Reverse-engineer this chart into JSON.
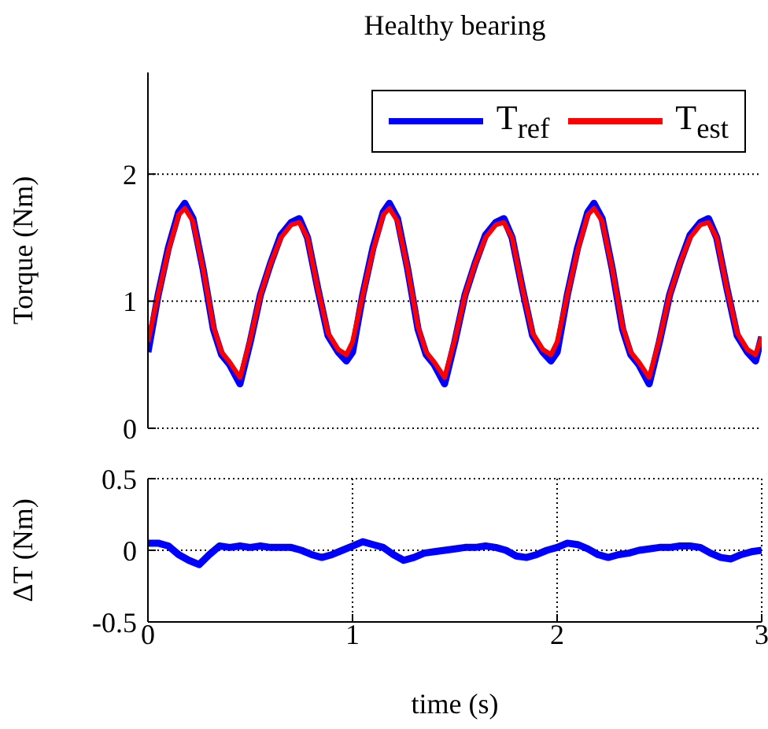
{
  "chart_data": [
    {
      "type": "line",
      "title": "Healthy bearing",
      "ylabel": "Torque (Nm)",
      "xlim": [
        0,
        3
      ],
      "xticks": [
        0,
        1,
        2,
        3
      ],
      "ylim": [
        0,
        2.8
      ],
      "yticks": [
        0,
        1,
        2
      ],
      "grid": "y",
      "legend": "top right",
      "tick_labels": "y",
      "x": [
        0,
        0.05,
        0.1,
        0.15,
        0.18,
        0.22,
        0.27,
        0.32,
        0.36,
        0.4,
        0.45,
        0.5,
        0.55,
        0.6,
        0.65,
        0.7,
        0.74,
        0.78,
        0.83,
        0.88,
        0.93,
        0.97,
        1,
        1.05,
        1.1,
        1.15,
        1.18,
        1.22,
        1.27,
        1.32,
        1.36,
        1.4,
        1.45,
        1.5,
        1.55,
        1.6,
        1.65,
        1.7,
        1.74,
        1.78,
        1.83,
        1.88,
        1.93,
        1.97,
        2,
        2.05,
        2.1,
        2.15,
        2.18,
        2.22,
        2.27,
        2.32,
        2.36,
        2.4,
        2.45,
        2.5,
        2.55,
        2.6,
        2.65,
        2.7,
        2.74,
        2.78,
        2.83,
        2.88,
        2.93,
        2.97,
        3
      ],
      "series": [
        {
          "name": "T$_{ref}$",
          "color": "#0000ff",
          "values": [
            0.6,
            1.05,
            1.42,
            1.7,
            1.77,
            1.65,
            1.25,
            0.78,
            0.58,
            0.5,
            0.35,
            0.68,
            1.05,
            1.3,
            1.52,
            1.62,
            1.65,
            1.5,
            1.1,
            0.73,
            0.6,
            0.53,
            0.6,
            1.05,
            1.42,
            1.7,
            1.77,
            1.65,
            1.25,
            0.78,
            0.58,
            0.5,
            0.35,
            0.68,
            1.05,
            1.3,
            1.52,
            1.62,
            1.65,
            1.5,
            1.1,
            0.73,
            0.6,
            0.53,
            0.6,
            1.05,
            1.42,
            1.7,
            1.77,
            1.65,
            1.25,
            0.78,
            0.58,
            0.5,
            0.35,
            0.68,
            1.05,
            1.3,
            1.52,
            1.62,
            1.65,
            1.5,
            1.1,
            0.73,
            0.6,
            0.53,
            0.72
          ]
        },
        {
          "name": "T$_{est}$",
          "color": "#ff0000",
          "values": [
            0.68,
            1.05,
            1.4,
            1.68,
            1.73,
            1.63,
            1.25,
            0.8,
            0.6,
            0.52,
            0.4,
            0.7,
            1.05,
            1.3,
            1.5,
            1.6,
            1.62,
            1.5,
            1.1,
            0.75,
            0.62,
            0.58,
            0.68,
            1.05,
            1.4,
            1.68,
            1.73,
            1.63,
            1.25,
            0.8,
            0.6,
            0.52,
            0.4,
            0.7,
            1.05,
            1.3,
            1.5,
            1.6,
            1.62,
            1.5,
            1.1,
            0.75,
            0.62,
            0.58,
            0.68,
            1.05,
            1.4,
            1.68,
            1.73,
            1.63,
            1.25,
            0.8,
            0.6,
            0.52,
            0.4,
            0.7,
            1.05,
            1.3,
            1.5,
            1.6,
            1.62,
            1.5,
            1.1,
            0.75,
            0.62,
            0.58,
            0.72
          ]
        }
      ]
    },
    {
      "type": "line",
      "xlabel": "time (s)",
      "ylabel": "ΔT (Nm)",
      "xlim": [
        0,
        3
      ],
      "xticks": [
        0,
        1,
        2,
        3
      ],
      "ylim": [
        -0.5,
        0.5
      ],
      "yticks": [
        -0.5,
        0,
        0.5
      ],
      "grid": true,
      "x": [
        0,
        0.05,
        0.1,
        0.15,
        0.2,
        0.25,
        0.3,
        0.35,
        0.4,
        0.45,
        0.5,
        0.55,
        0.6,
        0.65,
        0.7,
        0.75,
        0.8,
        0.85,
        0.9,
        0.95,
        1,
        1.05,
        1.1,
        1.15,
        1.2,
        1.25,
        1.3,
        1.35,
        1.4,
        1.45,
        1.5,
        1.55,
        1.6,
        1.65,
        1.7,
        1.75,
        1.8,
        1.85,
        1.9,
        1.95,
        2,
        2.05,
        2.1,
        2.15,
        2.2,
        2.25,
        2.3,
        2.35,
        2.4,
        2.45,
        2.5,
        2.55,
        2.6,
        2.65,
        2.7,
        2.75,
        2.8,
        2.85,
        2.9,
        2.95,
        3
      ],
      "series": [
        {
          "color": "#0000ff",
          "values": [
            0.05,
            0.05,
            0.03,
            -0.03,
            -0.07,
            -0.1,
            -0.03,
            0.03,
            0.02,
            0.03,
            0.02,
            0.03,
            0.02,
            0.02,
            0.02,
            0,
            -0.03,
            -0.05,
            -0.03,
            0,
            0.03,
            0.06,
            0.04,
            0.02,
            -0.03,
            -0.07,
            -0.05,
            -0.02,
            -0.01,
            0,
            0.01,
            0.02,
            0.02,
            0.03,
            0.02,
            0,
            -0.04,
            -0.05,
            -0.03,
            0,
            0.02,
            0.05,
            0.04,
            0.01,
            -0.03,
            -0.05,
            -0.03,
            -0.02,
            0,
            0.01,
            0.02,
            0.02,
            0.03,
            0.03,
            0.02,
            -0.02,
            -0.05,
            -0.06,
            -0.03,
            -0.01,
            0
          ]
        }
      ]
    }
  ]
}
